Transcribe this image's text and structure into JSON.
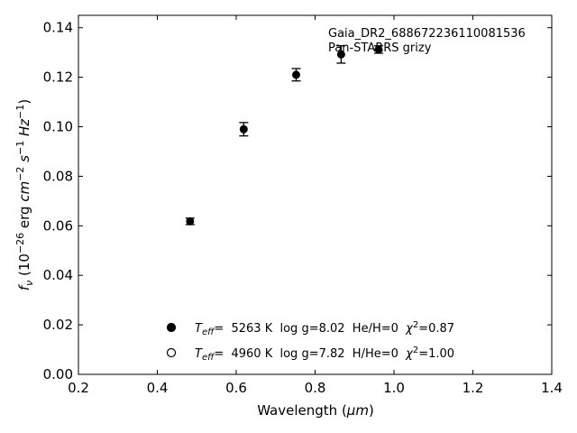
{
  "chart_data": {
    "type": "scatter",
    "title": "",
    "xlabel_main": "Wavelength (",
    "xlabel_unit": "μm",
    "xlabel_tail": ")",
    "ylabel_parts": [
      "f",
      "ν",
      " (10",
      "−26",
      " erg ",
      "cm",
      "−2",
      " s",
      "−1",
      " Hz",
      "−1",
      ")"
    ],
    "xlim": [
      0.2,
      1.4
    ],
    "ylim": [
      0.0,
      0.145
    ],
    "xticks": [
      0.2,
      0.4,
      0.6,
      0.8,
      1.0,
      1.2,
      1.4
    ],
    "xtick_labels": [
      "0.2",
      "0.4",
      "0.6",
      "0.8",
      "1.0",
      "1.2",
      "1.4"
    ],
    "yticks": [
      0.0,
      0.02,
      0.04,
      0.06,
      0.08,
      0.1,
      0.12,
      0.14
    ],
    "ytick_labels": [
      "0.00",
      "0.02",
      "0.04",
      "0.06",
      "0.08",
      "0.10",
      "0.12",
      "0.14"
    ],
    "grid": false,
    "annotations": [
      "Gaia_DR2_688672236110081536",
      "Pan-STARRS grizy"
    ],
    "series": [
      {
        "name": "observed",
        "marker": "filled-circle",
        "color": "#000000",
        "points": [
          {
            "x": 0.483,
            "y": 0.0618,
            "err": 0.0013
          },
          {
            "x": 0.619,
            "y": 0.099,
            "err": 0.0027
          },
          {
            "x": 0.752,
            "y": 0.121,
            "err": 0.0025
          },
          {
            "x": 0.866,
            "y": 0.1292,
            "err": 0.0035
          },
          {
            "x": 0.961,
            "y": 0.1312,
            "err": 0.0015
          }
        ]
      }
    ],
    "legend": [
      {
        "marker": "filled-circle",
        "teff_symbol": "T",
        "teff_sub": "eff",
        "text_a": "=  5263 K  log g=8.02  He/H=0  ",
        "chi_symbol": "χ",
        "chi_sup": "2",
        "text_b": "=0.87"
      },
      {
        "marker": "open-circle",
        "teff_symbol": "T",
        "teff_sub": "eff",
        "text_a": "=  4960 K  log g=7.82  H/He=0  ",
        "chi_symbol": "χ",
        "chi_sup": "2",
        "text_b": "=1.00"
      }
    ],
    "legend_placement": "bottom-center"
  }
}
